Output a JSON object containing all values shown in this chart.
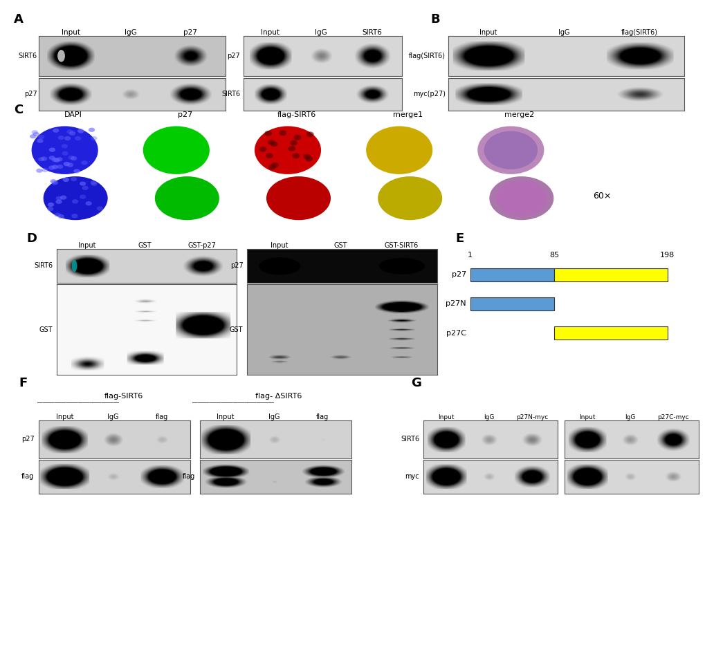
{
  "bg_color": "#ffffff",
  "panel_E_blue": "#5b9bd5",
  "panel_E_yellow": "#ffff00",
  "panel_C_titles": [
    "DAPI",
    "p27",
    "flag-SIRT6",
    "merge1",
    "merge2"
  ],
  "panel_C_magnification": "60×"
}
